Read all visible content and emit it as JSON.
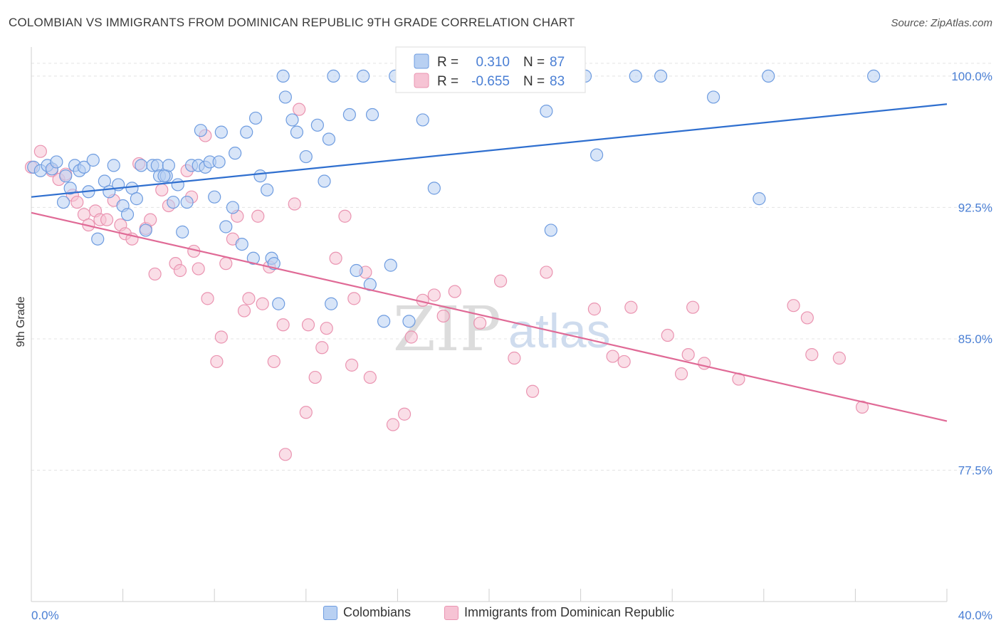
{
  "title": "COLOMBIAN VS IMMIGRANTS FROM DOMINICAN REPUBLIC 9TH GRADE CORRELATION CHART",
  "source": "Source: ZipAtlas.com",
  "watermark": {
    "zip": "ZIP",
    "atlas": "atlas"
  },
  "colors": {
    "blue_fill": "#b8d0f2",
    "blue_stroke": "#6e9ce0",
    "blue_line": "#2f6fcf",
    "pink_fill": "#f6c3d4",
    "pink_stroke": "#ea94b1",
    "pink_line": "#e06a96",
    "tick_text": "#4a7fd4",
    "grid": "#e4e4e4"
  },
  "legend": {
    "rows": [
      {
        "r_label": "R =",
        "r_value": "0.310",
        "n_label": "N =",
        "n_value": "87"
      },
      {
        "r_label": "R =",
        "r_value": "-0.655",
        "n_label": "N =",
        "n_value": "83"
      }
    ]
  },
  "bottom_legend": {
    "series1": "Colombians",
    "series2": "Immigrants from Dominican Republic"
  },
  "chart_data": {
    "type": "scatter",
    "title": "COLOMBIAN VS IMMIGRANTS FROM DOMINICAN REPUBLIC 9TH GRADE CORRELATION CHART",
    "xlabel": "",
    "ylabel": "9th Grade",
    "xlim": [
      0,
      40
    ],
    "ylim": [
      70,
      101.5
    ],
    "x_tick_labels": [
      "0.0%",
      "40.0%"
    ],
    "y_ticks": [
      77.5,
      85.0,
      92.5,
      100.0
    ],
    "y_tick_labels": [
      "77.5%",
      "85.0%",
      "92.5%",
      "100.0%"
    ],
    "grid": true,
    "legend_placement": "top-center",
    "series": [
      {
        "name": "Colombians",
        "R": 0.31,
        "N": 87,
        "trend": {
          "x": [
            0,
            40
          ],
          "y": [
            93.1,
            98.4
          ]
        },
        "points": [
          [
            0.1,
            94.8
          ],
          [
            0.4,
            94.6
          ],
          [
            0.7,
            94.9
          ],
          [
            0.9,
            94.7
          ],
          [
            1.1,
            95.1
          ],
          [
            1.4,
            92.8
          ],
          [
            1.5,
            94.3
          ],
          [
            1.7,
            93.6
          ],
          [
            1.9,
            94.9
          ],
          [
            2.1,
            94.6
          ],
          [
            2.3,
            94.8
          ],
          [
            2.5,
            93.4
          ],
          [
            2.7,
            95.2
          ],
          [
            2.9,
            90.7
          ],
          [
            3.2,
            94.0
          ],
          [
            3.4,
            93.4
          ],
          [
            3.6,
            94.9
          ],
          [
            3.8,
            93.8
          ],
          [
            4.0,
            92.6
          ],
          [
            4.2,
            92.1
          ],
          [
            4.4,
            93.6
          ],
          [
            4.6,
            93.0
          ],
          [
            4.8,
            94.9
          ],
          [
            5.0,
            91.2
          ],
          [
            5.3,
            94.9
          ],
          [
            5.5,
            94.9
          ],
          [
            5.6,
            94.3
          ],
          [
            5.9,
            94.3
          ],
          [
            6.0,
            94.9
          ],
          [
            6.2,
            92.8
          ],
          [
            6.4,
            93.8
          ],
          [
            6.6,
            91.1
          ],
          [
            6.8,
            92.8
          ],
          [
            7.0,
            94.9
          ],
          [
            7.3,
            94.9
          ],
          [
            7.4,
            96.9
          ],
          [
            7.6,
            94.8
          ],
          [
            7.8,
            95.1
          ],
          [
            8.0,
            93.1
          ],
          [
            8.2,
            95.1
          ],
          [
            8.3,
            96.8
          ],
          [
            8.5,
            91.4
          ],
          [
            8.8,
            92.5
          ],
          [
            8.9,
            95.6
          ],
          [
            9.2,
            90.4
          ],
          [
            9.4,
            96.8
          ],
          [
            9.7,
            89.6
          ],
          [
            9.8,
            97.6
          ],
          [
            10.0,
            94.3
          ],
          [
            10.3,
            93.5
          ],
          [
            10.5,
            89.6
          ],
          [
            10.6,
            89.3
          ],
          [
            11.0,
            100.0
          ],
          [
            11.1,
            98.8
          ],
          [
            11.4,
            97.5
          ],
          [
            11.6,
            96.8
          ],
          [
            12.0,
            95.4
          ],
          [
            12.5,
            97.2
          ],
          [
            12.8,
            94.0
          ],
          [
            13.0,
            96.4
          ],
          [
            13.1,
            87.0
          ],
          [
            13.2,
            100.0
          ],
          [
            13.9,
            97.8
          ],
          [
            14.2,
            88.9
          ],
          [
            14.5,
            100.0
          ],
          [
            14.8,
            88.1
          ],
          [
            14.9,
            97.8
          ],
          [
            15.4,
            86.0
          ],
          [
            15.7,
            89.2
          ],
          [
            15.9,
            100.0
          ],
          [
            16.5,
            86.0
          ],
          [
            17.1,
            97.5
          ],
          [
            17.6,
            93.6
          ],
          [
            18.0,
            100.0
          ],
          [
            19.6,
            100.0
          ],
          [
            22.5,
            98.0
          ],
          [
            22.7,
            91.2
          ],
          [
            24.2,
            100.0
          ],
          [
            24.7,
            95.5
          ],
          [
            26.4,
            100.0
          ],
          [
            27.5,
            100.0
          ],
          [
            29.8,
            98.8
          ],
          [
            31.8,
            93.0
          ],
          [
            32.2,
            100.0
          ],
          [
            36.8,
            100.0
          ],
          [
            10.8,
            87.0
          ],
          [
            5.8,
            94.3
          ]
        ]
      },
      {
        "name": "Immigrants from Dominican Republic",
        "R": -0.655,
        "N": 83,
        "trend": {
          "x": [
            0,
            40
          ],
          "y": [
            92.2,
            80.3
          ]
        },
        "points": [
          [
            0.0,
            94.8
          ],
          [
            0.4,
            95.7
          ],
          [
            0.9,
            94.6
          ],
          [
            1.2,
            94.1
          ],
          [
            1.5,
            94.4
          ],
          [
            1.8,
            93.2
          ],
          [
            2.0,
            92.8
          ],
          [
            2.3,
            92.1
          ],
          [
            2.5,
            91.5
          ],
          [
            2.8,
            92.3
          ],
          [
            3.0,
            91.8
          ],
          [
            3.3,
            91.8
          ],
          [
            3.6,
            92.9
          ],
          [
            3.9,
            91.5
          ],
          [
            4.1,
            91.0
          ],
          [
            4.4,
            90.7
          ],
          [
            4.7,
            95.0
          ],
          [
            5.0,
            91.3
          ],
          [
            5.2,
            91.8
          ],
          [
            5.4,
            88.7
          ],
          [
            5.7,
            93.5
          ],
          [
            6.0,
            92.6
          ],
          [
            6.3,
            89.3
          ],
          [
            6.5,
            88.9
          ],
          [
            6.8,
            94.6
          ],
          [
            7.0,
            93.1
          ],
          [
            7.1,
            90.0
          ],
          [
            7.3,
            89.0
          ],
          [
            7.6,
            96.6
          ],
          [
            7.7,
            87.3
          ],
          [
            8.1,
            83.7
          ],
          [
            8.3,
            85.1
          ],
          [
            8.5,
            89.3
          ],
          [
            8.8,
            90.7
          ],
          [
            9.0,
            92.0
          ],
          [
            9.3,
            86.6
          ],
          [
            9.5,
            87.3
          ],
          [
            9.9,
            92.0
          ],
          [
            10.1,
            87.0
          ],
          [
            10.4,
            89.1
          ],
          [
            10.6,
            83.7
          ],
          [
            11.0,
            85.8
          ],
          [
            11.1,
            78.4
          ],
          [
            11.5,
            92.7
          ],
          [
            11.7,
            98.1
          ],
          [
            12.0,
            80.8
          ],
          [
            12.1,
            85.8
          ],
          [
            12.4,
            82.8
          ],
          [
            12.7,
            84.5
          ],
          [
            12.9,
            85.6
          ],
          [
            13.3,
            89.6
          ],
          [
            13.7,
            92.0
          ],
          [
            14.0,
            83.5
          ],
          [
            14.1,
            87.3
          ],
          [
            14.6,
            88.8
          ],
          [
            14.8,
            82.8
          ],
          [
            15.8,
            80.1
          ],
          [
            16.3,
            80.7
          ],
          [
            16.6,
            85.1
          ],
          [
            17.1,
            87.2
          ],
          [
            17.6,
            87.5
          ],
          [
            18.0,
            86.3
          ],
          [
            18.5,
            87.7
          ],
          [
            19.6,
            85.9
          ],
          [
            20.5,
            88.3
          ],
          [
            21.1,
            83.9
          ],
          [
            21.9,
            82.0
          ],
          [
            22.5,
            88.8
          ],
          [
            24.6,
            86.7
          ],
          [
            25.4,
            84.0
          ],
          [
            25.9,
            83.7
          ],
          [
            26.2,
            86.8
          ],
          [
            27.8,
            85.2
          ],
          [
            28.4,
            83.0
          ],
          [
            28.7,
            84.1
          ],
          [
            28.9,
            86.8
          ],
          [
            29.4,
            83.6
          ],
          [
            30.9,
            82.7
          ],
          [
            33.3,
            86.9
          ],
          [
            33.9,
            86.2
          ],
          [
            34.1,
            84.1
          ],
          [
            35.3,
            83.9
          ],
          [
            36.3,
            81.1
          ]
        ]
      }
    ]
  }
}
